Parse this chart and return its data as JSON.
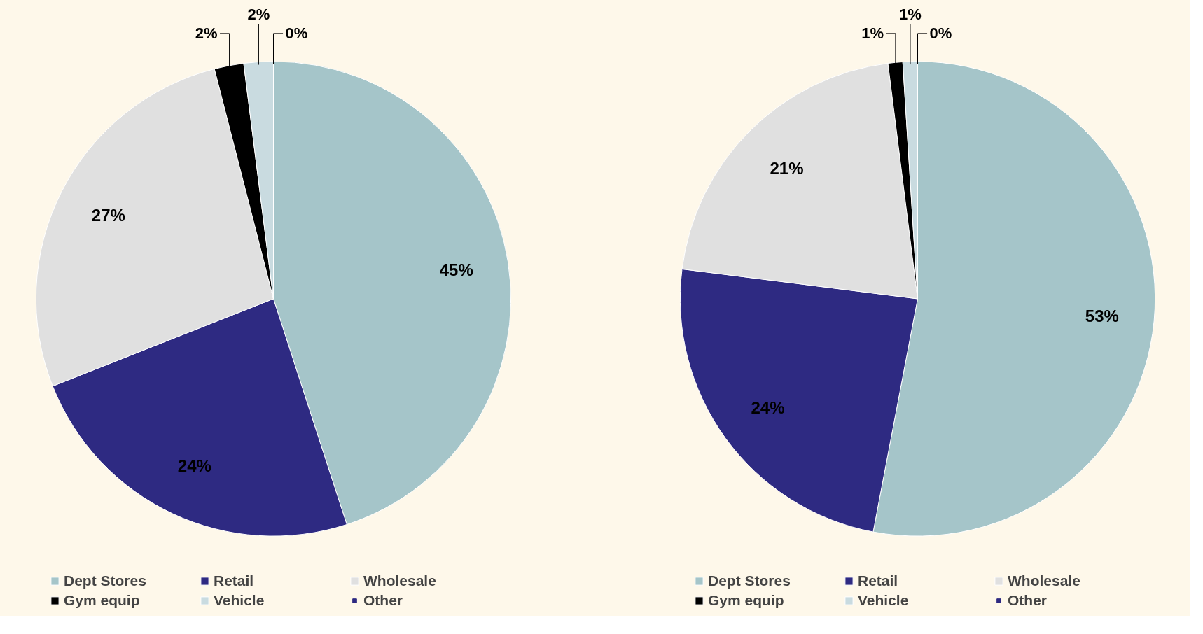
{
  "chart_data": [
    {
      "type": "pie",
      "categories": [
        "Dept Stores",
        "Retail",
        "Wholesale",
        "Gym equip",
        "Vehicle",
        "Other"
      ],
      "values": [
        45,
        24,
        27,
        2,
        2,
        0
      ],
      "colors": [
        "#a5c5c9",
        "#2e2a82",
        "#e0e0e0",
        "#000000",
        "#c9dbe0",
        "#2e2a82"
      ],
      "value_labels": [
        "45%",
        "24%",
        "27%",
        "2%",
        "2%",
        "0%"
      ],
      "legend": "bottom"
    },
    {
      "type": "pie",
      "categories": [
        "Dept Stores",
        "Retail",
        "Wholesale",
        "Gym equip",
        "Vehicle",
        "Other"
      ],
      "values": [
        53,
        24,
        21,
        1,
        1,
        0
      ],
      "colors": [
        "#a5c5c9",
        "#2e2a82",
        "#e0e0e0",
        "#000000",
        "#c9dbe0",
        "#2e2a82"
      ],
      "value_labels": [
        "53%",
        "24%",
        "21%",
        "1%",
        "1%",
        "0%"
      ],
      "legend": "bottom"
    }
  ]
}
